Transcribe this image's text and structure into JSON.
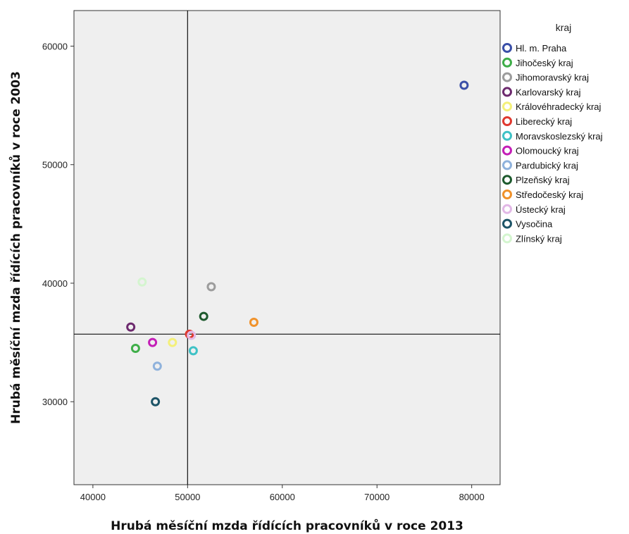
{
  "chart_data": {
    "type": "scatter",
    "xlabel": "Hrubá měsíční mzda řídících pracovníků v roce 2013",
    "ylabel": "Hrubá měsíční mzda řídících pracovníků v roce 2003",
    "xlim": [
      38000,
      83000
    ],
    "ylim": [
      23000,
      63000
    ],
    "x_ticks": [
      40000,
      50000,
      60000,
      70000,
      80000
    ],
    "y_ticks": [
      30000,
      40000,
      50000,
      60000
    ],
    "x_tick_labels": [
      "40000",
      "50000",
      "60000",
      "70000",
      "80000"
    ],
    "y_tick_labels": [
      "30000",
      "40000",
      "50000",
      "60000"
    ],
    "reference_lines": {
      "x": 50000,
      "y": 35700
    },
    "grid": false,
    "background": "#efefef",
    "legend": {
      "title": "kraj",
      "position": "right",
      "marker": "ring"
    },
    "series": [
      {
        "name": "Hl. m. Praha",
        "color": "#3a4fa8",
        "x": 79200,
        "y": 56700
      },
      {
        "name": "Jihočeský kraj",
        "color": "#3fae49",
        "x": 44500,
        "y": 34500
      },
      {
        "name": "Jihomoravský kraj",
        "color": "#9c9c9c",
        "x": 52500,
        "y": 39700
      },
      {
        "name": "Karlovarský kraj",
        "color": "#6d2a6e",
        "x": 44000,
        "y": 36300
      },
      {
        "name": "Královéhradecký kraj",
        "color": "#f4f07a",
        "x": 48400,
        "y": 35000
      },
      {
        "name": "Liberecký kraj",
        "color": "#e0392f",
        "x": 50200,
        "y": 35700
      },
      {
        "name": "Moravskoslezský kraj",
        "color": "#3fc2c6",
        "x": 50600,
        "y": 34300
      },
      {
        "name": "Olomoucký kraj",
        "color": "#c41fb7",
        "x": 46300,
        "y": 35000
      },
      {
        "name": "Pardubický kraj",
        "color": "#8fb2dc",
        "x": 46800,
        "y": 33000
      },
      {
        "name": "Plzeňský kraj",
        "color": "#1e5a2e",
        "x": 51700,
        "y": 37200
      },
      {
        "name": "Středočeský kraj",
        "color": "#f0922b",
        "x": 57000,
        "y": 36700
      },
      {
        "name": "Ústecký kraj",
        "color": "#e2b8e6",
        "x": 50400,
        "y": 35600
      },
      {
        "name": "Vysočina",
        "color": "#1d5467",
        "x": 46600,
        "y": 30000
      },
      {
        "name": "Zlínský kraj",
        "color": "#d4f5cf",
        "x": 45200,
        "y": 40100
      }
    ]
  }
}
